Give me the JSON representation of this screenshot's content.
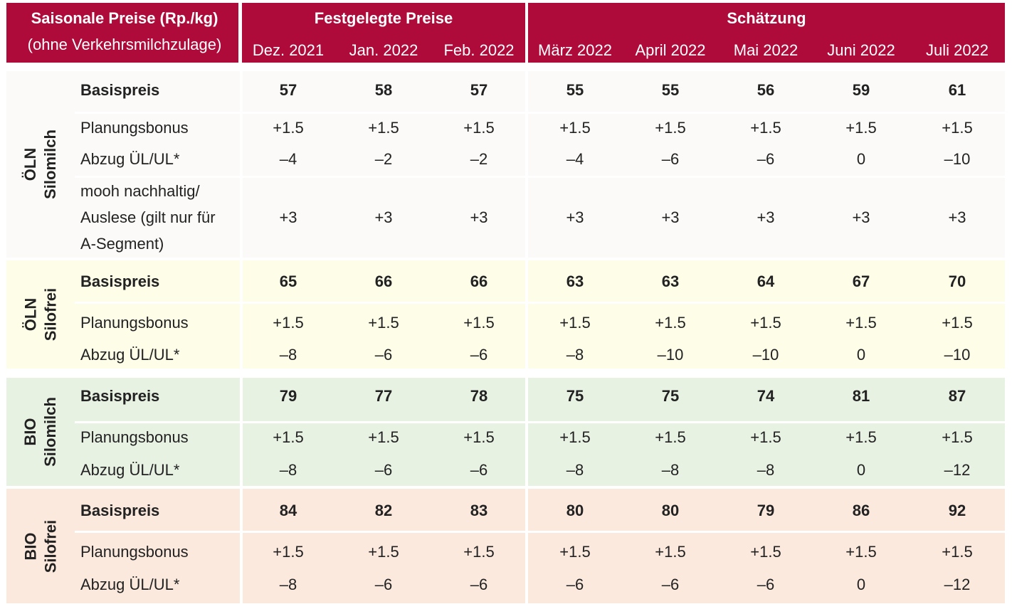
{
  "header": {
    "title_line1": "Saisonale Preise (Rp./kg)",
    "title_line2": "(ohne Verkehrsmilchzulage)",
    "group1_label": "Festgelegte Preise",
    "group2_label": "Schätzung",
    "months": [
      "Dez. 2021",
      "Jan. 2022",
      "Feb. 2022",
      "März 2022",
      "April 2022",
      "Mai 2022",
      "Juni 2022",
      "Juli 2022"
    ]
  },
  "colors": {
    "header": "#ae0b3a",
    "oln_silomilch": "#fbfaf8",
    "oln_silofrei": "#fefde8",
    "bio_silomilch": "#e8f2e3",
    "bio_silofrei": "#fce9dd"
  },
  "groups": [
    {
      "line1": "ÖLN",
      "line2": "Silomilch",
      "rows": [
        {
          "label": "Basispreis",
          "bold": true,
          "values": [
            "57",
            "58",
            "57",
            "55",
            "55",
            "56",
            "59",
            "61"
          ]
        },
        {
          "label": "Planungsbonus",
          "bold": false,
          "values": [
            "+1.5",
            "+1.5",
            "+1.5",
            "+1.5",
            "+1.5",
            "+1.5",
            "+1.5",
            "+1.5"
          ]
        },
        {
          "label": "Abzug ÜL/UL*",
          "bold": false,
          "values": [
            "–4",
            "–2",
            "–2",
            "–4",
            "–6",
            "–6",
            "0",
            "–10"
          ]
        },
        {
          "label_lines": [
            "mooh nachhaltig/",
            "Auslese (gilt nur für",
            "A-Segment)"
          ],
          "bold": false,
          "values": [
            "+3",
            "+3",
            "+3",
            "+3",
            "+3",
            "+3",
            "+3",
            "+3"
          ]
        }
      ]
    },
    {
      "line1": "ÖLN",
      "line2": "Silofrei",
      "rows": [
        {
          "label": "Basispreis",
          "bold": true,
          "values": [
            "65",
            "66",
            "66",
            "63",
            "63",
            "64",
            "67",
            "70"
          ]
        },
        {
          "label": "Planungsbonus",
          "bold": false,
          "values": [
            "+1.5",
            "+1.5",
            "+1.5",
            "+1.5",
            "+1.5",
            "+1.5",
            "+1.5",
            "+1.5"
          ]
        },
        {
          "label": "Abzug ÜL/UL*",
          "bold": false,
          "values": [
            "–8",
            "–6",
            "–6",
            "–8",
            "–10",
            "–10",
            "0",
            "–10"
          ]
        }
      ]
    },
    {
      "line1": "BIO",
      "line2": "Silomilch",
      "rows": [
        {
          "label": "Basispreis",
          "bold": true,
          "values": [
            "79",
            "77",
            "78",
            "75",
            "75",
            "74",
            "81",
            "87"
          ]
        },
        {
          "label": "Planungsbonus",
          "bold": false,
          "values": [
            "+1.5",
            "+1.5",
            "+1.5",
            "+1.5",
            "+1.5",
            "+1.5",
            "+1.5",
            "+1.5"
          ]
        },
        {
          "label": "Abzug ÜL/UL*",
          "bold": false,
          "values": [
            "–8",
            "–6",
            "–6",
            "–8",
            "–8",
            "–8",
            "0",
            "–12"
          ]
        }
      ]
    },
    {
      "line1": "BIO",
      "line2": "Silofrei",
      "rows": [
        {
          "label": "Basispreis",
          "bold": true,
          "values": [
            "84",
            "82",
            "83",
            "80",
            "80",
            "79",
            "86",
            "92"
          ]
        },
        {
          "label": "Planungsbonus",
          "bold": false,
          "values": [
            "+1.5",
            "+1.5",
            "+1.5",
            "+1.5",
            "+1.5",
            "+1.5",
            "+1.5",
            "+1.5"
          ]
        },
        {
          "label": "Abzug ÜL/UL*",
          "bold": false,
          "values": [
            "–8",
            "–6",
            "–6",
            "–6",
            "–6",
            "–6",
            "0",
            "–12"
          ]
        }
      ]
    }
  ]
}
